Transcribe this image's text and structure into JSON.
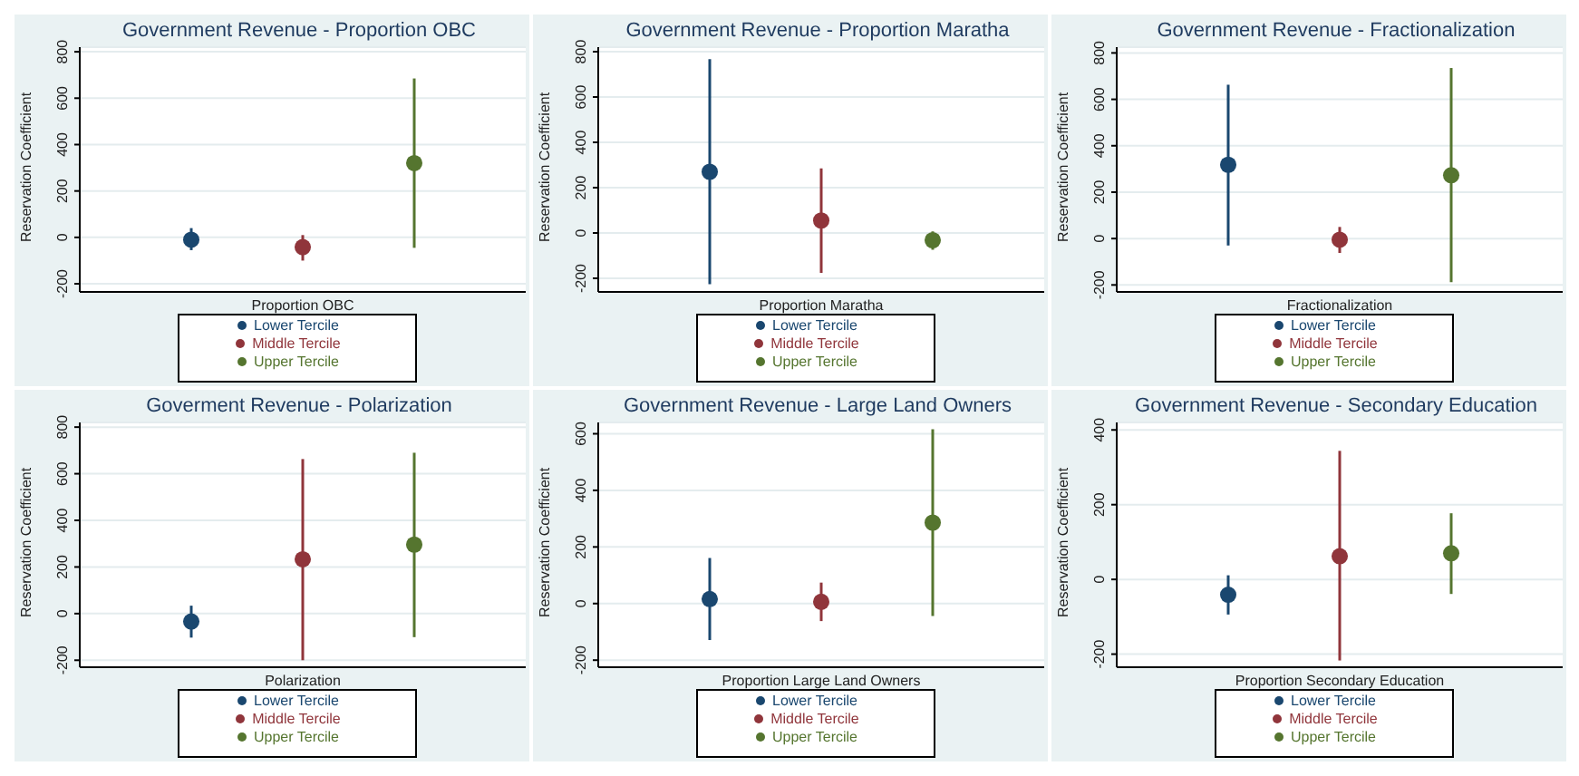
{
  "chart_data": [
    {
      "type": "scatter",
      "title": "Government Revenue - Proportion OBC",
      "xlabel": "Proportion OBC",
      "ylabel": "Reservation Coefficient",
      "categories": [
        null,
        null,
        null
      ],
      "ylim": [
        -235,
        820
      ],
      "yticks": [
        -200,
        0,
        200,
        400,
        600,
        800
      ],
      "grid": "y",
      "legend": "bottom",
      "marker": "circle",
      "series": [
        {
          "name": "Lower Tercile",
          "color": "#1a476f",
          "values": [
            -10,
            null,
            null
          ],
          "errors": [
            [
              -55,
              40
            ],
            null,
            null
          ]
        },
        {
          "name": "Middle Tercile",
          "color": "#90353b",
          "values": [
            null,
            -42,
            null
          ],
          "errors": [
            null,
            [
              -100,
              10
            ],
            null
          ]
        },
        {
          "name": "Upper Tercile",
          "color": "#55752f",
          "values": [
            null,
            null,
            320
          ],
          "errors": [
            null,
            null,
            [
              -45,
              685
            ]
          ]
        }
      ]
    },
    {
      "type": "scatter",
      "title": "Government Revenue - Proportion Maratha",
      "xlabel": "Proportion Maratha",
      "ylabel": "Reservation Coefficient",
      "categories": [
        null,
        null,
        null
      ],
      "ylim": [
        -260,
        820
      ],
      "yticks": [
        -200,
        0,
        200,
        400,
        600,
        800
      ],
      "grid": "y",
      "legend": "bottom",
      "marker": "circle",
      "series": [
        {
          "name": "Lower Tercile",
          "color": "#1a476f",
          "values": [
            270,
            null,
            null
          ],
          "errors": [
            [
              -226,
              767
            ],
            null,
            null
          ]
        },
        {
          "name": "Middle Tercile",
          "color": "#90353b",
          "values": [
            null,
            55,
            null
          ],
          "errors": [
            null,
            [
              -176,
              285
            ],
            null
          ]
        },
        {
          "name": "Upper Tercile",
          "color": "#55752f",
          "values": [
            null,
            null,
            -32
          ],
          "errors": [
            null,
            null,
            [
              -74,
              7
            ]
          ]
        }
      ]
    },
    {
      "type": "scatter",
      "title": "Government Revenue - Fractionalization",
      "xlabel": "Fractionalization",
      "ylabel": "Reservation Coefficient",
      "categories": [
        null,
        null,
        null
      ],
      "ylim": [
        -230,
        825
      ],
      "yticks": [
        -200,
        0,
        200,
        400,
        600,
        800
      ],
      "grid": "y",
      "legend": "bottom",
      "marker": "circle",
      "series": [
        {
          "name": "Lower Tercile",
          "color": "#1a476f",
          "values": [
            318,
            null,
            null
          ],
          "errors": [
            [
              -30,
              663
            ],
            null,
            null
          ]
        },
        {
          "name": "Middle Tercile",
          "color": "#90353b",
          "values": [
            null,
            -5,
            null
          ],
          "errors": [
            null,
            [
              -62,
              50
            ],
            null
          ]
        },
        {
          "name": "Upper Tercile",
          "color": "#55752f",
          "values": [
            null,
            null,
            273
          ],
          "errors": [
            null,
            null,
            [
              -188,
              735
            ]
          ]
        }
      ]
    },
    {
      "type": "scatter",
      "title": "Goverment Revenue - Polarization",
      "xlabel": "Polarization",
      "ylabel": "Reservation Coefficient",
      "categories": [
        null,
        null,
        null
      ],
      "ylim": [
        -230,
        820
      ],
      "yticks": [
        -200,
        0,
        200,
        400,
        600,
        800
      ],
      "grid": "y",
      "legend": "bottom",
      "marker": "circle",
      "series": [
        {
          "name": "Lower Tercile",
          "color": "#1a476f",
          "values": [
            -34,
            null,
            null
          ],
          "errors": [
            [
              -103,
              34
            ],
            null,
            null
          ]
        },
        {
          "name": "Middle Tercile",
          "color": "#90353b",
          "values": [
            null,
            233,
            null
          ],
          "errors": [
            null,
            [
              -200,
              663
            ],
            null
          ]
        },
        {
          "name": "Upper Tercile",
          "color": "#55752f",
          "values": [
            null,
            null,
            296
          ],
          "errors": [
            null,
            null,
            [
              -101,
              690
            ]
          ]
        }
      ]
    },
    {
      "type": "scatter",
      "title": "Government Revenue - Large Land Owners",
      "xlabel": "Proportion Large Land Owners",
      "ylabel": "Reservation Coefficient",
      "categories": [
        null,
        null,
        null
      ],
      "ylim": [
        -225,
        640
      ],
      "yticks": [
        -200,
        0,
        200,
        400,
        600
      ],
      "grid": "y",
      "legend": "bottom",
      "marker": "circle",
      "series": [
        {
          "name": "Lower Tercile",
          "color": "#1a476f",
          "values": [
            16,
            null,
            null
          ],
          "errors": [
            [
              -129,
              161
            ],
            null,
            null
          ]
        },
        {
          "name": "Middle Tercile",
          "color": "#90353b",
          "values": [
            null,
            6,
            null
          ],
          "errors": [
            null,
            [
              -62,
              74
            ],
            null
          ]
        },
        {
          "name": "Upper Tercile",
          "color": "#55752f",
          "values": [
            null,
            null,
            286
          ],
          "errors": [
            null,
            null,
            [
              -44,
              616
            ]
          ]
        }
      ]
    },
    {
      "type": "scatter",
      "title": "Government Revenue - Secondary Education",
      "xlabel": "Proportion Secondary Education",
      "ylabel": "Reservation Coefficient",
      "categories": [
        null,
        null,
        null
      ],
      "ylim": [
        -235,
        420
      ],
      "yticks": [
        -200,
        0,
        200,
        400
      ],
      "grid": "y",
      "legend": "bottom",
      "marker": "circle",
      "series": [
        {
          "name": "Lower Tercile",
          "color": "#1a476f",
          "values": [
            -41,
            null,
            null
          ],
          "errors": [
            [
              -94,
              11
            ],
            null,
            null
          ]
        },
        {
          "name": "Middle Tercile",
          "color": "#90353b",
          "values": [
            null,
            62,
            null
          ],
          "errors": [
            null,
            [
              -217,
              344
            ],
            null
          ]
        },
        {
          "name": "Upper Tercile",
          "color": "#55752f",
          "values": [
            null,
            null,
            70
          ],
          "errors": [
            null,
            null,
            [
              -39,
              177
            ]
          ]
        }
      ]
    }
  ]
}
